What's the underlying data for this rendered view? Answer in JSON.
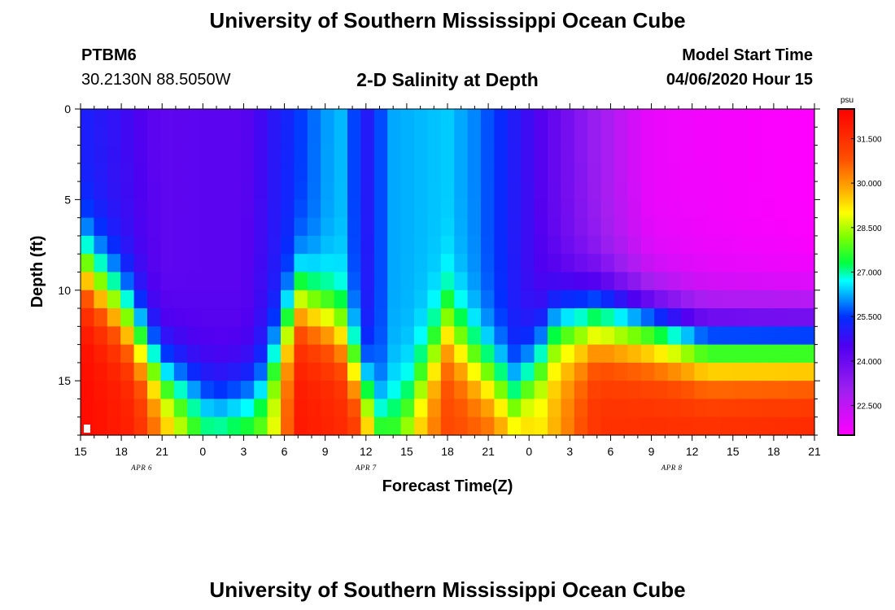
{
  "header": {
    "title": "University of Southern Mississippi Ocean Cube",
    "station_id": "PTBM6",
    "station_coords": "30.2130N 88.5050W",
    "plot_name": "2-D Salinity at Depth",
    "model_start_label": "Model Start Time",
    "model_start_value": "04/06/2020 Hour 15"
  },
  "footer": {
    "title": "University of Southern Mississippi Ocean Cube"
  },
  "chart_data": {
    "type": "heatmap",
    "title": "2-D Salinity at Depth",
    "xlabel": "Forecast Time(Z)",
    "ylabel": "Depth (ft)",
    "x_tick_labels": [
      "15",
      "18",
      "21",
      "0",
      "3",
      "6",
      "9",
      "12",
      "15",
      "18",
      "21",
      "0",
      "3",
      "6",
      "9",
      "12",
      "15",
      "18",
      "21"
    ],
    "x_range_hours": [
      0,
      54
    ],
    "date_labels": [
      {
        "text": "APR 6",
        "hour": 4.5
      },
      {
        "text": "APR 7",
        "hour": 21
      },
      {
        "text": "APR 8",
        "hour": 43.5
      }
    ],
    "y_tick_labels": [
      "0",
      "5",
      "10",
      "15"
    ],
    "ylim_ft": [
      0,
      18
    ],
    "colorbar": {
      "unit": "psu",
      "range": [
        21.5,
        32.5
      ],
      "tick_labels": [
        "31.500",
        "30.000",
        "28.500",
        "27.000",
        "25.500",
        "24.000",
        "22.500"
      ],
      "tick_values": [
        31.5,
        30.0,
        28.5,
        27.0,
        25.5,
        24.0,
        22.5
      ],
      "stops": [
        {
          "v": 21.5,
          "color": "#ff00ff"
        },
        {
          "v": 23.0,
          "color": "#a020f0"
        },
        {
          "v": 24.5,
          "color": "#5000f0"
        },
        {
          "v": 25.5,
          "color": "#0030ff"
        },
        {
          "v": 26.2,
          "color": "#00a8ff"
        },
        {
          "v": 26.7,
          "color": "#00ffff"
        },
        {
          "v": 27.3,
          "color": "#00ff40"
        },
        {
          "v": 28.2,
          "color": "#80ff00"
        },
        {
          "v": 29.0,
          "color": "#ffff00"
        },
        {
          "v": 29.8,
          "color": "#ffaa00"
        },
        {
          "v": 30.8,
          "color": "#ff5000"
        },
        {
          "v": 32.5,
          "color": "#ff0000"
        }
      ]
    },
    "grid": {
      "n_time": 55,
      "n_depth": 18,
      "surface_salinity_by_hour": [
        {
          "h": 0,
          "v": 25.2
        },
        {
          "h": 3,
          "v": 24.8
        },
        {
          "h": 6,
          "v": 24.2
        },
        {
          "h": 9,
          "v": 24.3
        },
        {
          "h": 12,
          "v": 24.3
        },
        {
          "h": 16,
          "v": 25.5
        },
        {
          "h": 19,
          "v": 26.4
        },
        {
          "h": 21,
          "v": 25.0
        },
        {
          "h": 23,
          "v": 26.2
        },
        {
          "h": 27,
          "v": 26.4
        },
        {
          "h": 29,
          "v": 26.0
        },
        {
          "h": 42,
          "v": 21.8
        },
        {
          "h": 54,
          "v": 21.5
        }
      ],
      "halocline_depth_ft_by_hour": [
        {
          "h": 0,
          "v": 8.5
        },
        {
          "h": 3,
          "v": 11.0
        },
        {
          "h": 6,
          "v": 14.8
        },
        {
          "h": 10,
          "v": 16.5
        },
        {
          "h": 13,
          "v": 16.0
        },
        {
          "h": 16,
          "v": 10.5
        },
        {
          "h": 19,
          "v": 12.0
        },
        {
          "h": 22,
          "v": 17.5
        },
        {
          "h": 24,
          "v": 16.5
        },
        {
          "h": 27,
          "v": 12.0
        },
        {
          "h": 29,
          "v": 14.0
        },
        {
          "h": 32,
          "v": 16.0
        },
        {
          "h": 35,
          "v": 12.0
        },
        {
          "h": 38,
          "v": 11.5
        },
        {
          "h": 42,
          "v": 12.0
        },
        {
          "h": 46,
          "v": 13.0
        },
        {
          "h": 54,
          "v": 13.0
        }
      ],
      "bottom_salinity_by_hour": [
        {
          "h": 0,
          "v": 32.3
        },
        {
          "h": 4,
          "v": 31.8
        },
        {
          "h": 9,
          "v": 28.0
        },
        {
          "h": 14,
          "v": 28.6
        },
        {
          "h": 16,
          "v": 32.0
        },
        {
          "h": 20,
          "v": 31.6
        },
        {
          "h": 23,
          "v": 28.5
        },
        {
          "h": 27,
          "v": 31.0
        },
        {
          "h": 30,
          "v": 30.8
        },
        {
          "h": 34,
          "v": 29.3
        },
        {
          "h": 38,
          "v": 31.5
        },
        {
          "h": 54,
          "v": 31.8
        }
      ]
    }
  }
}
